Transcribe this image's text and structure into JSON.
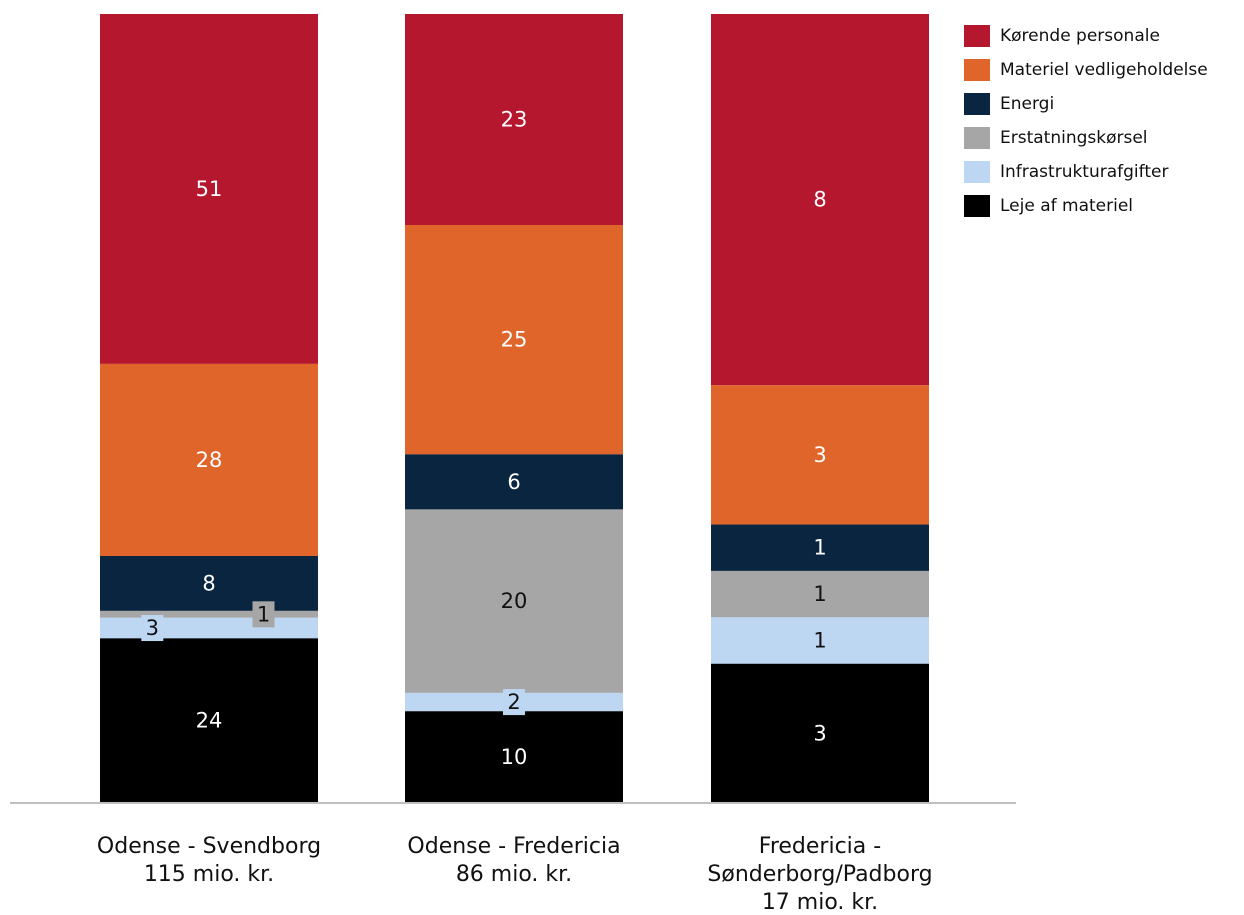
{
  "chart_data": {
    "type": "bar",
    "stacked": true,
    "title": "",
    "xlabel": "",
    "ylabel": "",
    "categories": [
      [
        "Odense - Svendborg",
        "115 mio. kr."
      ],
      [
        "Odense - Fredericia",
        "86 mio. kr."
      ],
      [
        "Fredericia -",
        "Sønderborg/Padborg",
        "17 mio. kr."
      ]
    ],
    "series": [
      {
        "name": "Kørende personale",
        "color": "#b5172f",
        "values": [
          51,
          23,
          8
        ]
      },
      {
        "name": "Materiel vedligeholdelse",
        "color": "#e0652b",
        "values": [
          28,
          25,
          3
        ]
      },
      {
        "name": "Energi",
        "color": "#0a2540",
        "values": [
          8,
          6,
          1
        ]
      },
      {
        "name": "Erstatningskørsel",
        "color": "#a6a6a6",
        "values": [
          1,
          20,
          1
        ]
      },
      {
        "name": "Infrastrukturafgifter",
        "color": "#bdd7f2",
        "values": [
          3,
          2,
          1
        ]
      },
      {
        "name": "Leje af materiel",
        "color": "#000000",
        "values": [
          24,
          10,
          3
        ]
      }
    ],
    "normalized_to_100_percent": true,
    "legend_position": "right",
    "grid": false
  }
}
